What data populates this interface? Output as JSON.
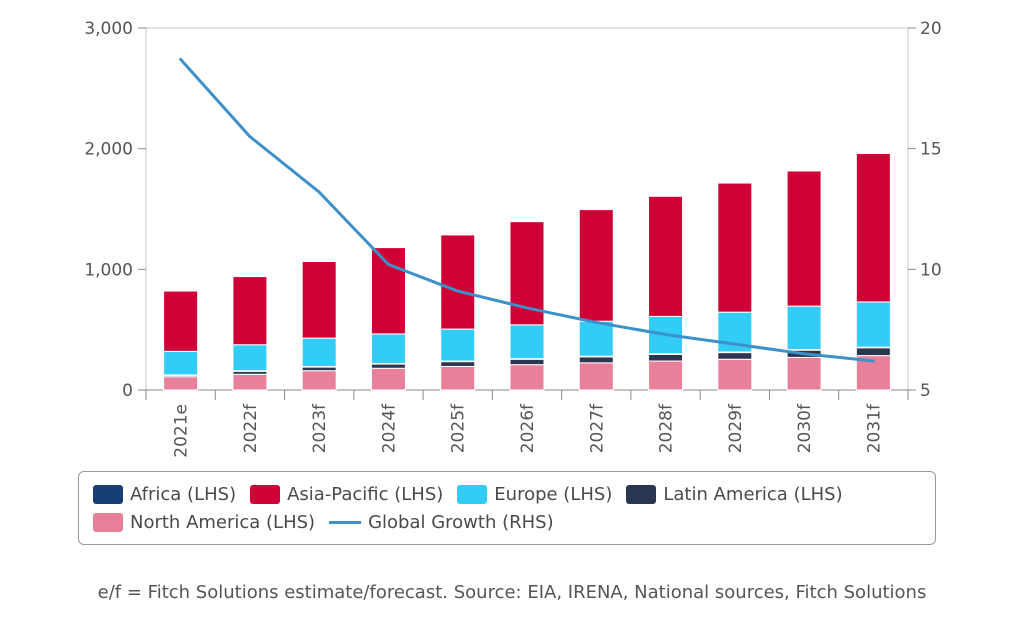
{
  "chart_data": {
    "type": "bar",
    "stacked": true,
    "categories": [
      "2021e",
      "2022f",
      "2023f",
      "2024f",
      "2025f",
      "2026f",
      "2027f",
      "2028f",
      "2029f",
      "2030f",
      "2031f"
    ],
    "series": [
      {
        "name": "North America (LHS)",
        "color": "#e8809b",
        "values": [
          110,
          130,
          160,
          180,
          195,
          210,
          225,
          240,
          255,
          270,
          285
        ]
      },
      {
        "name": "Latin America (LHS)",
        "color": "#2b3650",
        "values": [
          10,
          25,
          30,
          35,
          40,
          45,
          50,
          55,
          55,
          60,
          65
        ]
      },
      {
        "name": "Africa (LHS)",
        "color": "#173d75",
        "values": [
          5,
          5,
          5,
          5,
          5,
          5,
          5,
          5,
          5,
          5,
          5
        ]
      },
      {
        "name": "Europe (LHS)",
        "color": "#33ccf7",
        "values": [
          195,
          215,
          235,
          245,
          265,
          280,
          290,
          310,
          330,
          360,
          375
        ]
      },
      {
        "name": "Asia-Pacific (LHS)",
        "color": "#cf0036",
        "values": [
          500,
          565,
          635,
          715,
          780,
          855,
          925,
          995,
          1070,
          1120,
          1230
        ]
      },
      {
        "name": "Global Growth (RHS)",
        "type": "line",
        "axis": "right",
        "color": "#3d90c9",
        "values": [
          18.7,
          15.5,
          13.2,
          10.2,
          9.1,
          8.4,
          7.8,
          7.3,
          6.9,
          6.5,
          6.2
        ]
      }
    ],
    "ylim": [
      0,
      3000
    ],
    "yticks": [
      "0",
      "1,000",
      "2,000",
      "3,000"
    ],
    "y2lim": [
      5,
      20
    ],
    "y2ticks": [
      "5",
      "10",
      "15",
      "20"
    ]
  },
  "legend": {
    "row1": [
      {
        "label": "Africa (LHS)",
        "color": "#173d75"
      },
      {
        "label": "Asia-Pacific (LHS)",
        "color": "#cf0036"
      },
      {
        "label": "Europe (LHS)",
        "color": "#33ccf7"
      },
      {
        "label": "Latin America (LHS)",
        "color": "#2b3650"
      }
    ],
    "row2_swatch": {
      "label": "North America (LHS)",
      "color": "#e8809b"
    },
    "row2_line": {
      "label": "Global Growth (RHS)",
      "color": "#3d90c9"
    }
  },
  "caption": "e/f = Fitch Solutions estimate/forecast. Source: EIA, IRENA, National sources, Fitch Solutions"
}
